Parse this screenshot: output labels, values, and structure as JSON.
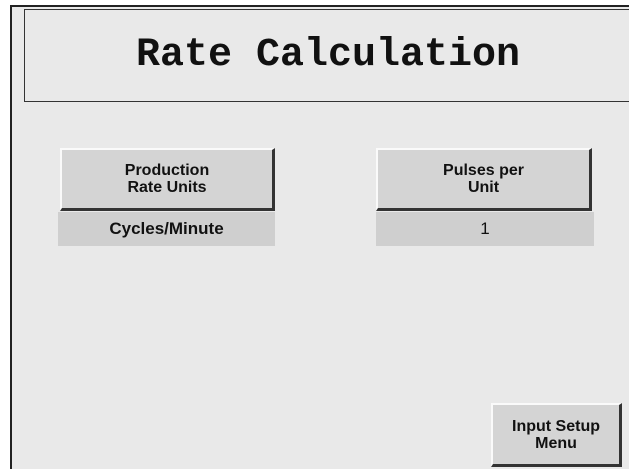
{
  "header": {
    "title": "Rate Calculation"
  },
  "settings": [
    {
      "label": [
        "Production",
        "Rate Units"
      ],
      "value": "Cycles/Minute"
    },
    {
      "label": [
        "Pulses per",
        "Unit"
      ],
      "value": 1
    }
  ],
  "nav_button": {
    "label": [
      "Input Setup",
      "Menu"
    ]
  }
}
